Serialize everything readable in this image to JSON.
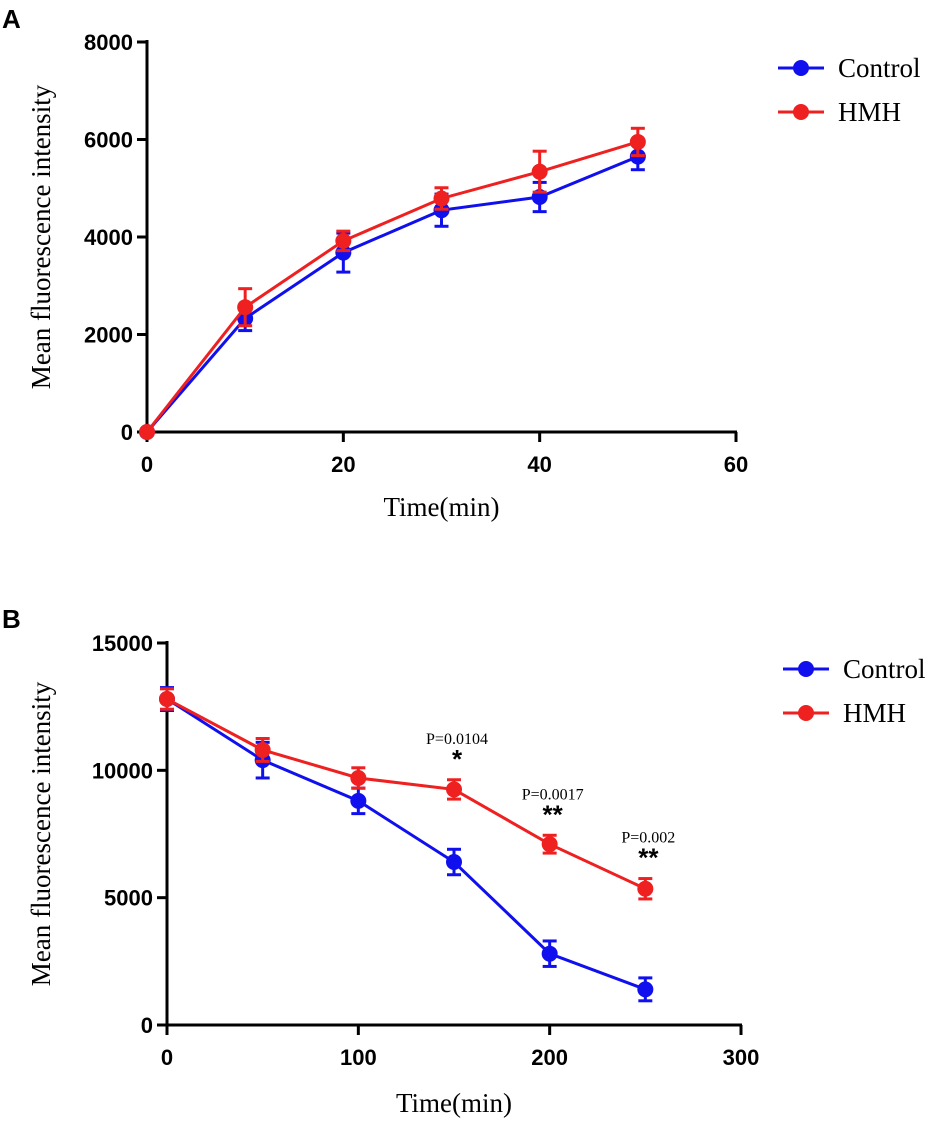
{
  "chart_data": [
    {
      "panel": "A",
      "type": "line",
      "title": "",
      "xlabel": "Time(min)",
      "ylabel": "Mean fluorescence intensity",
      "xlim": [
        0,
        60
      ],
      "ylim": [
        0,
        8000
      ],
      "xticks": [
        0,
        20,
        40,
        60
      ],
      "yticks": [
        0,
        2000,
        4000,
        6000,
        8000
      ],
      "x": [
        0,
        10,
        20,
        30,
        40,
        50
      ],
      "series": [
        {
          "name": "Control",
          "color": "#1010ee",
          "values": [
            0,
            2330,
            3680,
            4550,
            4820,
            5650
          ],
          "errors": [
            0,
            250,
            400,
            330,
            300,
            270
          ]
        },
        {
          "name": "HMH",
          "color": "#ee2020",
          "values": [
            0,
            2560,
            3920,
            4790,
            5340,
            5950
          ],
          "errors": [
            0,
            380,
            200,
            220,
            420,
            280
          ]
        }
      ],
      "legend": "top-right",
      "annotations": []
    },
    {
      "panel": "B",
      "type": "line",
      "title": "",
      "xlabel": "Time(min)",
      "ylabel": "Mean fluorescence intensity",
      "xlim": [
        0,
        300
      ],
      "ylim": [
        0,
        15000
      ],
      "xticks": [
        0,
        100,
        200,
        300
      ],
      "yticks": [
        0,
        5000,
        10000,
        15000
      ],
      "x": [
        0,
        50,
        100,
        150,
        200,
        250
      ],
      "series": [
        {
          "name": "Control",
          "color": "#1010ee",
          "values": [
            12800,
            10400,
            8800,
            6400,
            2800,
            1400
          ],
          "errors": [
            450,
            700,
            500,
            500,
            500,
            450
          ]
        },
        {
          "name": "HMH",
          "color": "#ee2020",
          "values": [
            12800,
            10800,
            9700,
            9250,
            7100,
            5350
          ],
          "errors": [
            400,
            450,
            400,
            380,
            350,
            400
          ]
        }
      ],
      "legend": "top-right",
      "annotations": [
        {
          "x": 150,
          "y": 9250,
          "p": "P=0.0104",
          "stars": "*"
        },
        {
          "x": 200,
          "y": 7100,
          "p": "P=0.0017",
          "stars": "**"
        },
        {
          "x": 250,
          "y": 5350,
          "p": "P=0.002",
          "stars": "**"
        }
      ]
    }
  ]
}
